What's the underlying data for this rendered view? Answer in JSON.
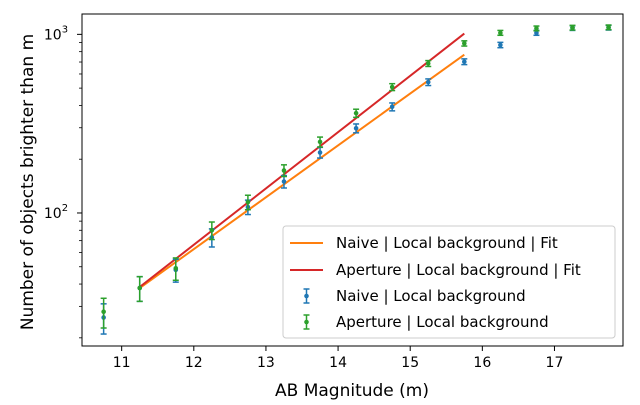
{
  "chart_data": {
    "type": "scatter",
    "title": "",
    "xlabel": "AB Magnitude (m)",
    "ylabel": "Number of objects brighter than m",
    "xlim": [
      10.45,
      17.95
    ],
    "ylim": [
      18,
      1300
    ],
    "yscale": "log",
    "x_ticks": [
      11,
      12,
      13,
      14,
      15,
      16,
      17
    ],
    "x_tick_labels": [
      "11",
      "12",
      "13",
      "14",
      "15",
      "16",
      "17"
    ],
    "y_ticks": [
      100,
      1000
    ],
    "y_tick_base": "10",
    "y_tick_exponents": [
      "2",
      "3"
    ],
    "legend_position": "lower-right",
    "grid": false,
    "series": [
      {
        "name": "Naive | Local background | Fit",
        "kind": "line",
        "color": "#ff7f0e",
        "x": [
          11.25,
          15.75
        ],
        "y": [
          38,
          770
        ]
      },
      {
        "name": "Aperture | Local background | Fit",
        "kind": "line",
        "color": "#d62728",
        "x": [
          11.25,
          15.75
        ],
        "y": [
          38.5,
          1010
        ]
      },
      {
        "name": "Naive | Local background",
        "kind": "errorbar",
        "color": "#1f77b4",
        "x": [
          10.75,
          11.25,
          11.75,
          12.25,
          12.75,
          13.25,
          13.75,
          14.25,
          14.75,
          15.25,
          15.75,
          16.25,
          16.75,
          17.25,
          17.75
        ],
        "y": [
          26,
          38,
          48,
          73,
          108,
          150,
          218,
          298,
          393,
          540,
          703,
          872,
          1020,
          1085,
          1090
        ],
        "yerr": [
          5,
          6,
          7,
          8.5,
          10,
          12,
          15,
          17,
          20,
          23,
          26,
          30,
          32,
          33,
          33
        ]
      },
      {
        "name": "Aperture | Local background",
        "kind": "errorbar",
        "color": "#2ca02c",
        "x": [
          10.75,
          11.25,
          11.75,
          12.25,
          12.75,
          13.25,
          13.75,
          14.25,
          14.75,
          15.25,
          15.75,
          16.25,
          16.75,
          17.25,
          17.75
        ],
        "y": [
          28,
          38,
          49,
          80,
          115,
          173,
          250,
          362,
          507,
          687,
          890,
          1020,
          1080,
          1090,
          1095
        ],
        "yerr": [
          5.3,
          6,
          7,
          9,
          10.7,
          13,
          16,
          19,
          22.5,
          26,
          30,
          32,
          33,
          33,
          33
        ]
      }
    ]
  }
}
